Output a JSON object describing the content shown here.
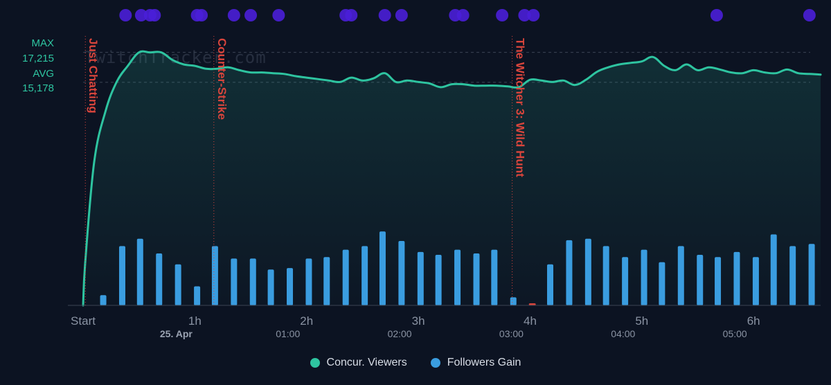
{
  "colors": {
    "background": "#0c1322",
    "viewers": "#2ec4a0",
    "followers": "#3a9de0",
    "annotation": "#d9453c",
    "event_dot": "#4a1fd8",
    "axis_text": "#8a93a3",
    "stat_text": "#2ec4a0"
  },
  "watermark": "TwitchTracker.com",
  "stats": {
    "max_label": "MAX",
    "max_value": "17,215",
    "avg_label": "AVG",
    "avg_value": "15,178"
  },
  "legend": {
    "viewers_label": "Concur. Viewers",
    "followers_label": "Followers Gain"
  },
  "chart_data": {
    "type": "line+bar",
    "x_unit": "hours since stream start",
    "xlim": [
      0,
      6.6
    ],
    "x_ticks": [
      {
        "x": 0,
        "label": "Start",
        "sub": ""
      },
      {
        "x": 1,
        "label": "1h",
        "sub": "25. Apr"
      },
      {
        "x": 2,
        "label": "2h",
        "sub": "01:00"
      },
      {
        "x": 3,
        "label": "3h",
        "sub": "02:00"
      },
      {
        "x": 4,
        "label": "4h",
        "sub": "03:00"
      },
      {
        "x": 5,
        "label": "5h",
        "sub": "04:00"
      },
      {
        "x": 6,
        "label": "6h",
        "sub": "05:00"
      }
    ],
    "viewers": {
      "name": "Concur. Viewers",
      "ylim": [
        0,
        18000
      ],
      "max": 17215,
      "avg": 15178,
      "x": [
        0,
        0.02,
        0.1,
        0.2,
        0.3,
        0.4,
        0.5,
        0.6,
        0.7,
        0.8,
        0.9,
        1.0,
        1.1,
        1.2,
        1.3,
        1.4,
        1.5,
        1.6,
        1.7,
        1.8,
        1.9,
        2.0,
        2.1,
        2.2,
        2.3,
        2.4,
        2.5,
        2.6,
        2.7,
        2.8,
        2.9,
        3.0,
        3.1,
        3.2,
        3.3,
        3.4,
        3.5,
        3.6,
        3.7,
        3.8,
        3.9,
        4.0,
        4.1,
        4.2,
        4.3,
        4.4,
        4.5,
        4.6,
        4.7,
        4.8,
        4.9,
        5.0,
        5.1,
        5.2,
        5.3,
        5.4,
        5.5,
        5.6,
        5.7,
        5.8,
        5.9,
        6.0,
        6.1,
        6.2,
        6.3,
        6.4,
        6.5,
        6.6
      ],
      "values": [
        0,
        3000,
        9800,
        13200,
        15200,
        16300,
        17215,
        17215,
        17215,
        16700,
        16400,
        16300,
        16100,
        16100,
        16200,
        16000,
        15850,
        15850,
        15800,
        15750,
        15600,
        15500,
        15400,
        15300,
        15200,
        15500,
        15300,
        15450,
        15800,
        15200,
        15300,
        15200,
        15100,
        14850,
        15050,
        15050,
        14950,
        14950,
        14950,
        14900,
        14850,
        15350,
        15300,
        15200,
        15300,
        15000,
        15350,
        15900,
        16200,
        16400,
        16500,
        16600,
        16900,
        16300,
        16000,
        16400,
        16000,
        16200,
        16050,
        15850,
        15800,
        16000,
        15850,
        15800,
        16050,
        15800,
        15750,
        15700
      ]
    },
    "followers": {
      "name": "Followers Gain",
      "ylim": [
        0,
        210
      ],
      "x": [
        0.18,
        0.35,
        0.51,
        0.68,
        0.85,
        1.02,
        1.18,
        1.35,
        1.52,
        1.68,
        1.85,
        2.02,
        2.18,
        2.35,
        2.52,
        2.68,
        2.85,
        3.02,
        3.18,
        3.35,
        3.52,
        3.68,
        3.85,
        4.02,
        4.18,
        4.35,
        4.52,
        4.68,
        4.85,
        5.02,
        5.18,
        5.35,
        5.52,
        5.68,
        5.85,
        6.02,
        6.18,
        6.35,
        6.52
      ],
      "values": [
        14,
        81,
        91,
        71,
        56,
        26,
        81,
        64,
        64,
        49,
        51,
        64,
        66,
        76,
        81,
        101,
        88,
        73,
        69,
        76,
        71,
        76,
        11,
        1,
        56,
        89,
        91,
        81,
        66,
        76,
        59,
        81,
        69,
        66,
        73,
        66,
        97,
        81,
        84
      ]
    },
    "annotations": [
      {
        "x": 0.02,
        "label": "Just Chatting"
      },
      {
        "x": 1.17,
        "label": "Counter-Strike"
      },
      {
        "x": 3.84,
        "label": "The Witcher 3: Wild Hunt"
      }
    ],
    "event_markers_x": [
      0.38,
      0.52,
      0.6,
      0.64,
      1.02,
      1.06,
      1.35,
      1.5,
      1.75,
      2.35,
      2.4,
      2.7,
      2.85,
      3.33,
      3.4,
      3.75,
      3.95,
      4.03,
      5.67,
      6.5
    ]
  }
}
